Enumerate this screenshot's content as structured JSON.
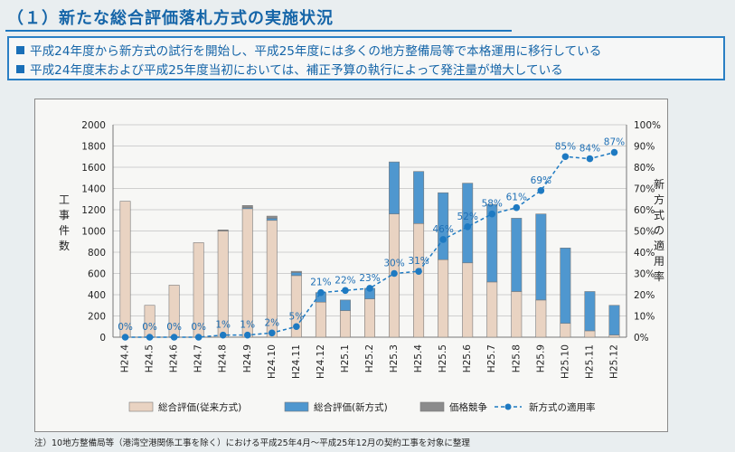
{
  "header": {
    "title": "（１）新たな総合評価落札方式の実施状況"
  },
  "banner": {
    "items": [
      "平成24年度から新方式の試行を開始し、平成25年度には多くの地方整備局等で本格運用に移行している",
      "平成24年度末および平成25年度当初においては、補正予算の執行によって発注量が増大している"
    ]
  },
  "chart_data": {
    "type": "bar",
    "categories": [
      "H24.4",
      "H24.5",
      "H24.6",
      "H24.7",
      "H24.8",
      "H24.9",
      "H24.10",
      "H24.11",
      "H24.12",
      "H25.1",
      "H25.2",
      "H25.3",
      "H25.4",
      "H25.5",
      "H25.6",
      "H25.7",
      "H25.8",
      "H25.9",
      "H25.10",
      "H25.11",
      "H25.12"
    ],
    "series": [
      {
        "name": "総合評価(従来方式)",
        "color": "#e9d3c2",
        "values": [
          1280,
          300,
          490,
          890,
          1000,
          1210,
          1100,
          580,
          330,
          250,
          360,
          1160,
          1070,
          730,
          700,
          520,
          430,
          350,
          130,
          60,
          20
        ]
      },
      {
        "name": "総合評価(新方式)",
        "color": "#4f97cf",
        "values": [
          0,
          0,
          0,
          0,
          0,
          10,
          20,
          30,
          90,
          100,
          100,
          490,
          490,
          630,
          750,
          730,
          690,
          810,
          710,
          370,
          280
        ]
      },
      {
        "name": "価格競争",
        "color": "#8c8c8c",
        "values": [
          0,
          0,
          0,
          0,
          10,
          20,
          20,
          10,
          0,
          0,
          0,
          0,
          0,
          0,
          0,
          0,
          0,
          0,
          0,
          0,
          0
        ]
      }
    ],
    "line": {
      "name": "新方式の適用率",
      "color": "#1e7ac2",
      "values": [
        0,
        0,
        0,
        0,
        1,
        1,
        2,
        5,
        21,
        22,
        23,
        30,
        31,
        46,
        52,
        58,
        61,
        69,
        85,
        84,
        87
      ],
      "labels": [
        "0%",
        "0%",
        "0%",
        "0%",
        "1%",
        "1%",
        "2%",
        "5%",
        "21%",
        "22%",
        "23%",
        "30%",
        "31%",
        "46%",
        "52%",
        "58%",
        "61%",
        "69%",
        "85%",
        "84%",
        "87%"
      ]
    },
    "ylabel_left": "工事件数",
    "ylabel_right": "新方式の適用率",
    "ylim_left": [
      0,
      2000
    ],
    "ylim_right": [
      0,
      100
    ],
    "yticks_left": [
      "0",
      "200",
      "400",
      "600",
      "800",
      "1000",
      "1200",
      "1400",
      "1600",
      "1800",
      "2000"
    ],
    "yticks_right": [
      "0%",
      "10%",
      "20%",
      "30%",
      "40%",
      "50%",
      "60%",
      "70%",
      "80%",
      "90%",
      "100%"
    ],
    "grid": true,
    "legend_position": "bottom"
  },
  "footnote": "注）10地方整備局等（港湾空港関係工事を除く）における平成25年4月～平成25年12月の契約工事を対象に整理"
}
